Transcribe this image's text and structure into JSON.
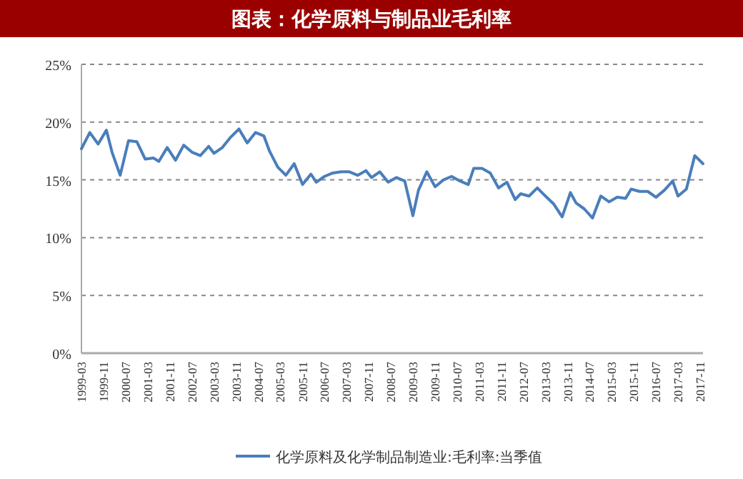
{
  "chart_data": {
    "type": "line",
    "title": "图表：化学原料与制品业毛利率",
    "x": [
      "1999-03",
      "1999-06",
      "1999-09",
      "1999-12",
      "2000-02",
      "2000-05",
      "2000-08",
      "2000-11",
      "2001-02",
      "2001-05",
      "2001-07",
      "2001-10",
      "2002-01",
      "2002-04",
      "2002-07",
      "2002-10",
      "2003-01",
      "2003-03",
      "2003-06",
      "2003-09",
      "2003-12",
      "2004-03",
      "2004-06",
      "2004-09",
      "2004-11",
      "2005-02",
      "2005-05",
      "2005-08",
      "2005-11",
      "2006-02",
      "2006-04",
      "2006-07",
      "2006-10",
      "2007-01",
      "2007-04",
      "2007-07",
      "2007-10",
      "2007-12",
      "2008-03",
      "2008-06",
      "2008-09",
      "2008-12",
      "2009-03",
      "2009-05",
      "2009-08",
      "2009-11",
      "2010-02",
      "2010-05",
      "2010-08",
      "2010-11",
      "2011-01",
      "2011-04",
      "2011-07",
      "2011-10",
      "2012-01",
      "2012-04",
      "2012-06",
      "2012-09",
      "2012-12",
      "2013-03",
      "2013-06",
      "2013-09",
      "2013-12",
      "2014-02",
      "2014-05",
      "2014-08",
      "2014-11",
      "2015-02",
      "2015-05",
      "2015-08",
      "2015-10",
      "2016-01",
      "2016-04",
      "2016-07",
      "2016-10",
      "2017-01",
      "2017-03",
      "2017-06",
      "2017-09",
      "2017-12"
    ],
    "series": [
      {
        "name": "化学原料及化学制品制造业:毛利率:当季值",
        "color": "#4a7ebb",
        "values": [
          17.7,
          19.1,
          18.1,
          19.3,
          17.4,
          15.4,
          18.4,
          18.3,
          16.8,
          16.9,
          16.6,
          17.8,
          16.7,
          18.0,
          17.4,
          17.1,
          17.9,
          17.3,
          17.8,
          18.7,
          19.4,
          18.2,
          19.1,
          18.8,
          17.5,
          16.1,
          15.4,
          16.4,
          14.6,
          15.5,
          14.8,
          15.3,
          15.6,
          15.7,
          15.7,
          15.4,
          15.8,
          15.2,
          15.7,
          14.8,
          15.2,
          14.9,
          11.9,
          14.1,
          15.7,
          14.4,
          15.0,
          15.3,
          14.9,
          14.6,
          16.0,
          16.0,
          15.6,
          14.3,
          14.8,
          13.3,
          13.8,
          13.6,
          14.3,
          13.6,
          12.9,
          11.8,
          13.9,
          13.0,
          12.5,
          11.7,
          13.6,
          13.1,
          13.5,
          13.4,
          14.2,
          14.0,
          14.0,
          13.5,
          14.1,
          14.9,
          13.6,
          14.2,
          17.1,
          16.4
        ]
      }
    ],
    "xlim": [
      "1999-03",
      "2017-12"
    ],
    "xticks": [
      "1999-03",
      "1999-11",
      "2000-07",
      "2001-03",
      "2001-11",
      "2002-07",
      "2003-03",
      "2003-11",
      "2004-07",
      "2005-03",
      "2005-11",
      "2006-07",
      "2007-03",
      "2007-11",
      "2008-07",
      "2009-03",
      "2009-11",
      "2010-07",
      "2011-03",
      "2011-11",
      "2012-07",
      "2013-03",
      "2013-11",
      "2014-07",
      "2015-03",
      "2015-11",
      "2016-07",
      "2017-03",
      "2017-11"
    ],
    "ylim": [
      0,
      25
    ],
    "yticks": [
      {
        "value": 0,
        "label": "0%"
      },
      {
        "value": 5,
        "label": "5%"
      },
      {
        "value": 10,
        "label": "10%"
      },
      {
        "value": 15,
        "label": "15%"
      },
      {
        "value": 20,
        "label": "20%"
      },
      {
        "value": 25,
        "label": "25%"
      }
    ],
    "grid": "y",
    "legend": "bottom",
    "marker": "none",
    "line_style": "solid"
  }
}
